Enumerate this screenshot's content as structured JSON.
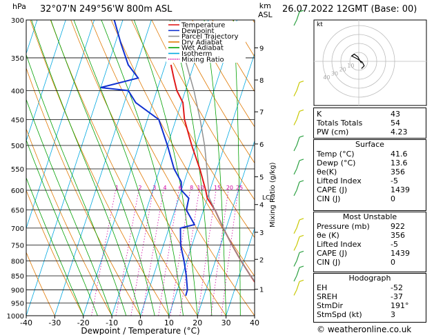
{
  "header": {
    "location": "32°07'N 249°56'W 800m ASL",
    "time": "26.07.2022 12GMT (Base: 00)",
    "unit_left": "hPa",
    "unit_right_1": "km",
    "unit_right_2": "ASL"
  },
  "copyright": "© weatheronline.co.uk",
  "skewt": {
    "pressure_levels": [
      300,
      350,
      400,
      450,
      500,
      550,
      600,
      650,
      700,
      750,
      800,
      850,
      900,
      950,
      1000
    ],
    "temperature_ticks": [
      -40,
      -30,
      -20,
      -10,
      0,
      10,
      20,
      30,
      40
    ],
    "km_labels": [
      {
        "km": 1,
        "p": 898
      },
      {
        "km": 2,
        "p": 795
      },
      {
        "km": 3,
        "p": 712
      },
      {
        "km": 4,
        "p": 636
      },
      {
        "km": 5,
        "p": 568
      },
      {
        "km": 6,
        "p": 497
      },
      {
        "km": 7,
        "p": 436
      },
      {
        "km": 8,
        "p": 383
      },
      {
        "km": 9,
        "p": 336
      }
    ],
    "lcl_label": "LCL",
    "lcl_pressure": 618,
    "mixing_ratio_labels": [
      "1",
      "2",
      "3",
      "4",
      "6",
      "8",
      "10",
      "15",
      "20",
      "25"
    ],
    "mixing_ratio_values": [
      1,
      2,
      3,
      4,
      6,
      8,
      10,
      15,
      20,
      25
    ],
    "mixing_axis_label": "Mixing Ratio (g/kg)",
    "xlabel": "Dewpoint / Temperature (°C)",
    "legend": [
      {
        "label": "Temperature",
        "color": "#e01818",
        "style": "solid"
      },
      {
        "label": "Dewpoint",
        "color": "#1030d0",
        "style": "solid"
      },
      {
        "label": "Parcel Trajectory",
        "color": "#909090",
        "style": "solid"
      },
      {
        "label": "Dry Adiabat",
        "color": "#e07800",
        "style": "solid"
      },
      {
        "label": "Wet Adiabat",
        "color": "#00a000",
        "style": "solid"
      },
      {
        "label": "Isotherm",
        "color": "#00a8e0",
        "style": "solid"
      },
      {
        "label": "Mixing Ratio",
        "color": "#d000a0",
        "style": "dotted"
      }
    ]
  },
  "chart_data": {
    "type": "line",
    "title": "32°07'N 249°56'W 800m ASL",
    "xlabel": "Dewpoint / Temperature (°C)",
    "ylabel": "hPa",
    "xlim": [
      -40,
      40
    ],
    "ylim": [
      1000,
      300
    ],
    "series": [
      {
        "name": "Temperature",
        "p": [
          922,
          900,
          850,
          800,
          750,
          700,
          650,
          620,
          600,
          550,
          500,
          450,
          420,
          400,
          380,
          360
        ],
        "t": [
          41.6,
          39.0,
          34.0,
          29.0,
          24.0,
          19.0,
          14.0,
          10.0,
          8.5,
          4.0,
          -1.5,
          -7.0,
          -9.5,
          -13.0,
          -15.5,
          -18.0
        ]
      },
      {
        "name": "Dewpoint",
        "p": [
          922,
          900,
          850,
          800,
          750,
          700,
          690,
          650,
          620,
          600,
          580,
          550,
          500,
          450,
          420,
          400,
          395,
          380,
          360,
          330,
          300
        ],
        "t": [
          13.6,
          13.5,
          11.5,
          9.0,
          6.0,
          4.0,
          8.5,
          4.0,
          3.5,
          0.0,
          -1.0,
          -5.0,
          -10.0,
          -16.0,
          -26.0,
          -30.0,
          -40.0,
          -28.0,
          -33.0,
          -38.0,
          -43.0
        ]
      },
      {
        "name": "Parcel Trajectory",
        "p": [
          922,
          850,
          800,
          750,
          700,
          650,
          618,
          600,
          550,
          500,
          450,
          400,
          350,
          300
        ],
        "t": [
          41.6,
          34.0,
          29.0,
          24.0,
          19.0,
          14.0,
          10.5,
          9.5,
          6.5,
          3.0,
          -1.5,
          -7.0,
          -14.0,
          -22.0
        ]
      }
    ]
  },
  "wind_barbs": {
    "levels_hpa": [
      300,
      400,
      450,
      500,
      550,
      600,
      700,
      750,
      800,
      850,
      900
    ],
    "colors": [
      "#2aa040",
      "#c8c800",
      "#c8c800",
      "#2aa040",
      "#2aa040",
      "#2aa040",
      "#c8c800",
      "#c8c800",
      "#2aa040",
      "#2aa040",
      "#c8c800"
    ]
  },
  "hodograph": {
    "label_kt": "kt",
    "rings": [
      "10",
      "20",
      "30",
      "40"
    ],
    "ring_kt": [
      10,
      20,
      30,
      40
    ],
    "trace_kt": [
      [
        3,
        -2
      ],
      [
        1,
        1
      ],
      [
        -1,
        5
      ],
      [
        -5,
        8
      ],
      [
        -8,
        6
      ],
      [
        -2,
        3
      ],
      [
        4,
        -1
      ],
      [
        6,
        -5
      ],
      [
        3,
        -8
      ]
    ]
  },
  "table_indices": [
    {
      "label": "K",
      "value": "43"
    },
    {
      "label": "Totals Totals",
      "value": "54"
    },
    {
      "label": "PW (cm)",
      "value": "4.23"
    }
  ],
  "table_surface": {
    "title": "Surface",
    "rows": [
      {
        "label": "Temp (°C)",
        "value": "41.6"
      },
      {
        "label": "Dewp (°C)",
        "value": "13.6"
      },
      {
        "label": "θe(K)",
        "value": "356"
      },
      {
        "label": "Lifted Index",
        "value": "-5"
      },
      {
        "label": "CAPE (J)",
        "value": "1439"
      },
      {
        "label": "CIN (J)",
        "value": "0"
      }
    ]
  },
  "table_unstable": {
    "title": "Most Unstable",
    "rows": [
      {
        "label": "Pressure (mb)",
        "value": "922"
      },
      {
        "label": "θe (K)",
        "value": "356"
      },
      {
        "label": "Lifted Index",
        "value": "-5"
      },
      {
        "label": "CAPE (J)",
        "value": "1439"
      },
      {
        "label": "CIN (J)",
        "value": "0"
      }
    ]
  },
  "table_hodograph": {
    "title": "Hodograph",
    "rows": [
      {
        "label": "EH",
        "value": "-52"
      },
      {
        "label": "SREH",
        "value": "-37"
      },
      {
        "label": "StmDir",
        "value": "191°"
      },
      {
        "label": "StmSpd (kt)",
        "value": "3"
      }
    ]
  }
}
